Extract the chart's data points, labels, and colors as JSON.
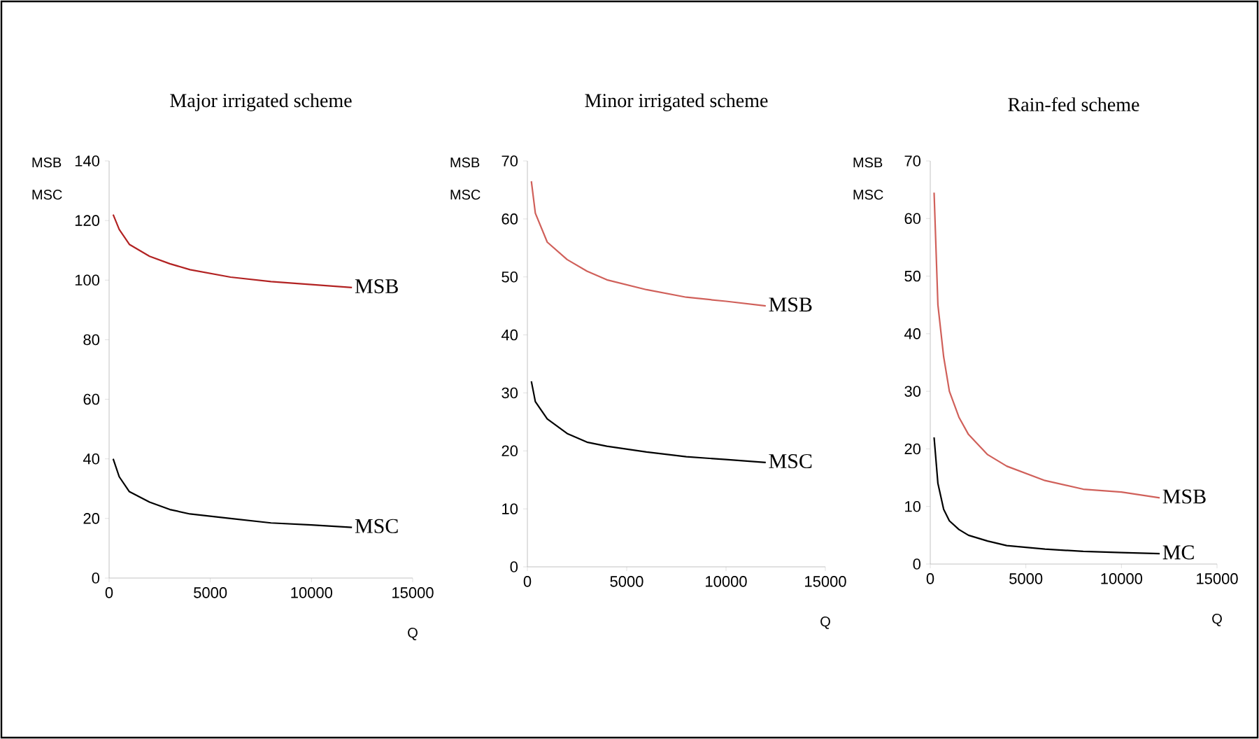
{
  "chart_data": [
    {
      "type": "line",
      "title": "Major irrigated scheme",
      "xlabel": "Q",
      "ylabel": "MSB MSC",
      "xlim": [
        0,
        15000
      ],
      "xticks": [
        0,
        5000,
        10000,
        15000
      ],
      "ylim": [
        0,
        140
      ],
      "yticks": [
        0,
        20,
        40,
        60,
        80,
        100,
        120,
        140
      ],
      "marker": "none",
      "series": [
        {
          "name": "MSB",
          "color": "#b22222",
          "x": [
            200,
            500,
            1000,
            2000,
            3000,
            4000,
            6000,
            8000,
            10000,
            12000
          ],
          "values": [
            122,
            117,
            112,
            108,
            105.5,
            103.5,
            101,
            99.5,
            98.5,
            97.5
          ]
        },
        {
          "name": "MSC",
          "color": "#000000",
          "x": [
            200,
            500,
            1000,
            2000,
            3000,
            4000,
            6000,
            8000,
            10000,
            12000
          ],
          "values": [
            40,
            34,
            29,
            25.5,
            23,
            21.5,
            20,
            18.5,
            17.8,
            17
          ]
        }
      ]
    },
    {
      "type": "line",
      "title": "Minor irrigated scheme",
      "xlabel": "Q",
      "ylabel": "MSB MSC",
      "xlim": [
        0,
        15000
      ],
      "xticks": [
        0,
        5000,
        10000,
        15000
      ],
      "ylim": [
        0,
        70
      ],
      "yticks": [
        0,
        10,
        20,
        30,
        40,
        50,
        60,
        70
      ],
      "marker": "none",
      "series": [
        {
          "name": "MSB",
          "color": "#d0605a",
          "x": [
            200,
            400,
            1000,
            2000,
            3000,
            4000,
            6000,
            8000,
            10000,
            12000
          ],
          "values": [
            66.5,
            61,
            56,
            53,
            51,
            49.5,
            47.8,
            46.5,
            45.8,
            45
          ]
        },
        {
          "name": "MSC",
          "color": "#000000",
          "x": [
            200,
            400,
            1000,
            2000,
            3000,
            4000,
            6000,
            8000,
            10000,
            12000
          ],
          "values": [
            32,
            28.5,
            25.5,
            23,
            21.5,
            20.8,
            19.8,
            19,
            18.5,
            18
          ]
        }
      ]
    },
    {
      "type": "line",
      "title": "Rain-fed scheme",
      "xlabel": "Q",
      "ylabel": "MSB MSC",
      "xlim": [
        0,
        15000
      ],
      "xticks": [
        0,
        5000,
        10000,
        15000
      ],
      "ylim": [
        0,
        70
      ],
      "yticks": [
        0,
        10,
        20,
        30,
        40,
        50,
        60,
        70
      ],
      "marker": "none",
      "series": [
        {
          "name": "MSB",
          "color": "#d0605a",
          "x": [
            200,
            400,
            700,
            1000,
            1500,
            2000,
            3000,
            4000,
            6000,
            8000,
            10000,
            12000
          ],
          "values": [
            64.5,
            45,
            36,
            30,
            25.5,
            22.5,
            19,
            17,
            14.5,
            13,
            12.5,
            11.5
          ]
        },
        {
          "name": "MC",
          "color": "#000000",
          "x": [
            200,
            400,
            700,
            1000,
            1500,
            2000,
            3000,
            4000,
            6000,
            8000,
            10000,
            12000
          ],
          "values": [
            22,
            14,
            9.5,
            7.5,
            6,
            5,
            4,
            3.2,
            2.6,
            2.2,
            2,
            1.8
          ]
        }
      ]
    }
  ]
}
